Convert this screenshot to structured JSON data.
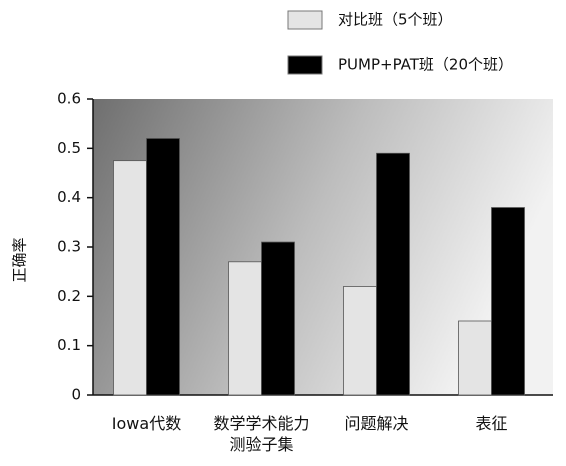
{
  "chart_data": {
    "type": "bar",
    "y_label": "正确率",
    "categories": [
      "Iowa代数",
      "数学学术能力测验子集",
      "问题解决",
      "表征"
    ],
    "series": [
      {
        "name": "对比班（5个班）",
        "color": "#e4e4e4",
        "values": [
          0.475,
          0.27,
          0.22,
          0.15
        ]
      },
      {
        "name": "PUMP+PAT班（20个班）",
        "color": "#000000",
        "values": [
          0.52,
          0.31,
          0.49,
          0.38
        ]
      }
    ],
    "ylim": [
      0,
      0.6
    ],
    "yticks": [
      0,
      0.1,
      0.2,
      0.3,
      0.4,
      0.5,
      0.6
    ]
  }
}
